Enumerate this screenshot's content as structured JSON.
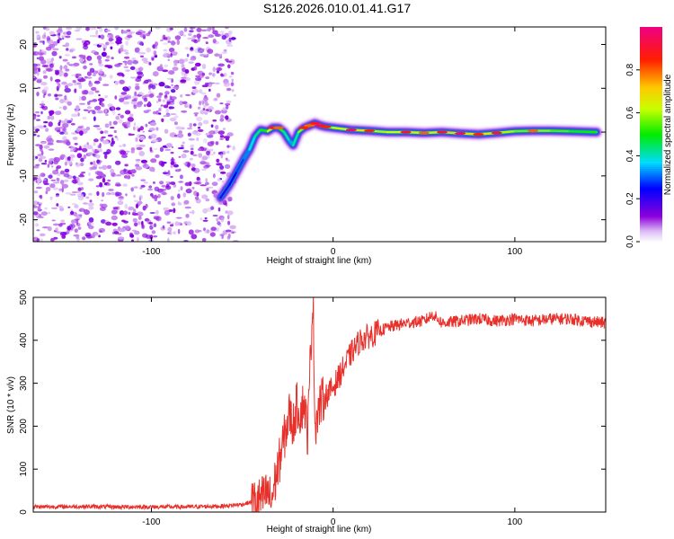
{
  "title": "S126.2026.010.01.41.G17",
  "chart_data": [
    {
      "type": "heatmap",
      "xlabel": "Height of straight line (km)",
      "ylabel": "Frequency (Hz)",
      "xlim": [
        -165,
        150
      ],
      "ylim": [
        -25,
        24
      ],
      "x_ticks": [
        -100,
        0,
        100
      ],
      "y_ticks": [
        -20,
        -10,
        0,
        10,
        20
      ],
      "colorbar": {
        "label": "Normalized spectral amplitude",
        "range": [
          0,
          1
        ],
        "ticks": [
          0.0,
          0.2,
          0.4,
          0.6,
          0.8
        ],
        "tick_labels": [
          "0.0",
          "0.2",
          "0.4",
          "0.6",
          "0.8"
        ]
      },
      "noise_region_x": [
        -165,
        -55
      ],
      "ridge": {
        "x": [
          -62,
          -57,
          -53,
          -49,
          -46,
          -43,
          -40,
          -36,
          -33,
          -30,
          -27,
          -24,
          -22,
          -19,
          -16,
          -13,
          -10,
          -7,
          -4,
          0,
          10,
          20,
          30,
          40,
          50,
          60,
          70,
          80,
          90,
          100,
          110,
          120,
          130,
          145
        ],
        "freq": [
          -15,
          -12,
          -9,
          -6,
          -4,
          -1,
          0.5,
          0.2,
          1,
          1,
          0,
          -2,
          -3,
          0,
          1,
          1.5,
          2,
          1.5,
          1.2,
          1,
          0.5,
          0.3,
          0,
          0,
          -0.2,
          0,
          -0.3,
          -0.5,
          -0.2,
          0.2,
          0.3,
          0.3,
          0.2,
          0
        ],
        "amplitude": [
          0.25,
          0.3,
          0.35,
          0.4,
          0.45,
          0.55,
          0.6,
          0.75,
          0.9,
          0.8,
          0.6,
          0.5,
          0.4,
          0.7,
          0.85,
          0.8,
          0.9,
          0.95,
          0.85,
          0.7,
          0.95,
          0.85,
          0.75,
          0.9,
          0.8,
          0.9,
          0.95,
          0.85,
          0.9,
          0.7,
          0.8,
          0.75,
          0.7,
          0.65
        ]
      }
    },
    {
      "type": "line",
      "xlabel": "Height of straight line (km)",
      "ylabel": "SNR (10 * v/v)",
      "xlim": [
        -165,
        150
      ],
      "ylim": [
        0,
        500
      ],
      "x_ticks": [
        -100,
        0,
        100
      ],
      "y_ticks": [
        0,
        100,
        200,
        300,
        400,
        500
      ],
      "series": [
        {
          "name": "SNR",
          "color": "#e8302a",
          "x": [
            -165,
            -140,
            -120,
            -100,
            -80,
            -60,
            -50,
            -40,
            -38,
            -36,
            -34,
            -32,
            -30,
            -28,
            -26,
            -24,
            -22,
            -20,
            -18,
            -16,
            -14,
            -12,
            -11,
            -10,
            -8,
            -6,
            -4,
            -2,
            0,
            5,
            10,
            15,
            20,
            25,
            30,
            40,
            50,
            55,
            60,
            70,
            80,
            90,
            100,
            110,
            120,
            130,
            140,
            150
          ],
          "values": [
            12,
            13,
            12,
            12,
            12,
            14,
            18,
            28,
            35,
            45,
            25,
            70,
            110,
            150,
            190,
            230,
            200,
            250,
            230,
            260,
            180,
            420,
            500,
            200,
            240,
            260,
            270,
            280,
            290,
            330,
            370,
            400,
            410,
            420,
            430,
            440,
            445,
            460,
            440,
            445,
            450,
            445,
            450,
            445,
            450,
            450,
            445,
            440
          ]
        }
      ]
    }
  ]
}
